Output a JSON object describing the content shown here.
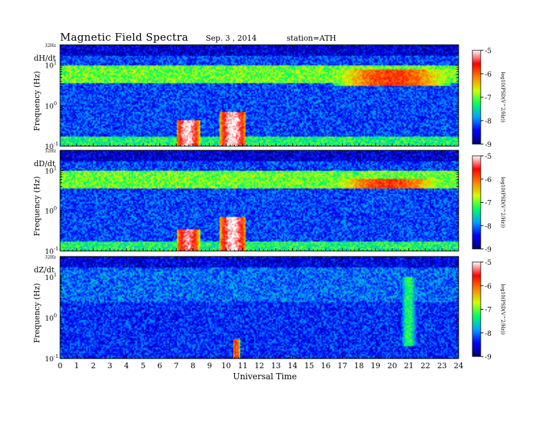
{
  "header": {
    "title": "Magnetic  Field  Spectra",
    "date": "Sep. 3  , 2014",
    "station": "station=ATH"
  },
  "chart_data": [
    {
      "type": "heatmap",
      "panel_label": "dH/dt",
      "ylabel": "Frequency  (Hz)",
      "xlabel": "",
      "top_label": "32Hz",
      "y_scale": "log",
      "ylim": [
        0.1,
        32
      ],
      "y_ticks": [
        {
          "v": 0.1,
          "b": "10",
          "e": "-1"
        },
        {
          "v": 1,
          "b": "10",
          "e": "0"
        },
        {
          "v": 10,
          "b": "10",
          "e": "1"
        }
      ],
      "xlim": [
        0,
        24
      ],
      "x_ticks": [
        "0",
        "1",
        "2",
        "3",
        "4",
        "5",
        "6",
        "7",
        "8",
        "9",
        "10",
        "11",
        "12",
        "13",
        "14",
        "15",
        "16",
        "17",
        "18",
        "19",
        "20",
        "21",
        "22",
        "23",
        "24"
      ],
      "colorbar": {
        "label": "log10(PSD(V^2/Hz))",
        "range": [
          -9,
          -5
        ],
        "ticks": [
          "-5",
          "-6",
          "-7",
          "-8",
          "-9"
        ]
      },
      "features": [
        {
          "t0": 7.0,
          "t1": 8.4,
          "fmax": 0.45,
          "level": -5.0
        },
        {
          "t0": 9.6,
          "t1": 11.2,
          "fmax": 0.7,
          "level": -5.0
        },
        {
          "t0": 16.5,
          "t1": 23.5,
          "fmin": 3.0,
          "fmax": 8.0,
          "level": -5.8
        }
      ]
    },
    {
      "type": "heatmap",
      "panel_label": "dD/dt",
      "ylabel": "Frequency  (Hz)",
      "xlabel": "",
      "top_label": "32Hz",
      "y_scale": "log",
      "ylim": [
        0.1,
        32
      ],
      "y_ticks": [
        {
          "v": 0.1,
          "b": "10",
          "e": "-1"
        },
        {
          "v": 1,
          "b": "10",
          "e": "0"
        },
        {
          "v": 10,
          "b": "10",
          "e": "1"
        }
      ],
      "xlim": [
        0,
        24
      ],
      "x_ticks": [
        "0",
        "1",
        "2",
        "3",
        "4",
        "5",
        "6",
        "7",
        "8",
        "9",
        "10",
        "11",
        "12",
        "13",
        "14",
        "15",
        "16",
        "17",
        "18",
        "19",
        "20",
        "21",
        "22",
        "23",
        "24"
      ],
      "colorbar": {
        "label": "log10(PSD(V^2/Hz))",
        "range": [
          -9,
          -5
        ],
        "ticks": [
          "-5",
          "-6",
          "-7",
          "-8",
          "-9"
        ]
      },
      "features": [
        {
          "t0": 7.0,
          "t1": 8.4,
          "fmax": 0.35,
          "level": -5.2
        },
        {
          "t0": 9.6,
          "t1": 11.2,
          "fmax": 0.7,
          "level": -5.0
        },
        {
          "t0": 16.5,
          "t1": 23.0,
          "fmin": 3.5,
          "fmax": 6.0,
          "level": -5.8
        }
      ]
    },
    {
      "type": "heatmap",
      "panel_label": "dZ/dt",
      "ylabel": "Frequency  (Hz)",
      "xlabel": "Universal Time",
      "top_label": "32Hz",
      "y_scale": "log",
      "ylim": [
        0.1,
        32
      ],
      "y_ticks": [
        {
          "v": 0.1,
          "b": "10",
          "e": "-1"
        },
        {
          "v": 1,
          "b": "10",
          "e": "0"
        },
        {
          "v": 10,
          "b": "10",
          "e": "1"
        }
      ],
      "xlim": [
        0,
        24
      ],
      "x_ticks": [
        "0",
        "1",
        "2",
        "3",
        "4",
        "5",
        "6",
        "7",
        "8",
        "9",
        "10",
        "11",
        "12",
        "13",
        "14",
        "15",
        "16",
        "17",
        "18",
        "19",
        "20",
        "21",
        "22",
        "23",
        "24"
      ],
      "colorbar": {
        "label": "log10(PSD(V^2/Hz))",
        "range": [
          -9,
          -5
        ],
        "ticks": [
          "-5",
          "-6",
          "-7",
          "-8",
          "-9"
        ]
      },
      "features": [
        {
          "t0": 10.4,
          "t1": 10.8,
          "fmax": 0.3,
          "level": -5.5
        },
        {
          "t0": 20.5,
          "t1": 21.5,
          "fmin": 0.2,
          "fmax": 10,
          "level": -7.2
        }
      ]
    }
  ],
  "colors": {
    "colormap": [
      "#000070",
      "#0000ff",
      "#00a0ff",
      "#00ff60",
      "#d0ff00",
      "#ff8000",
      "#ff0000",
      "#ffffff"
    ],
    "background": "#ffffff",
    "text": "#000000"
  }
}
